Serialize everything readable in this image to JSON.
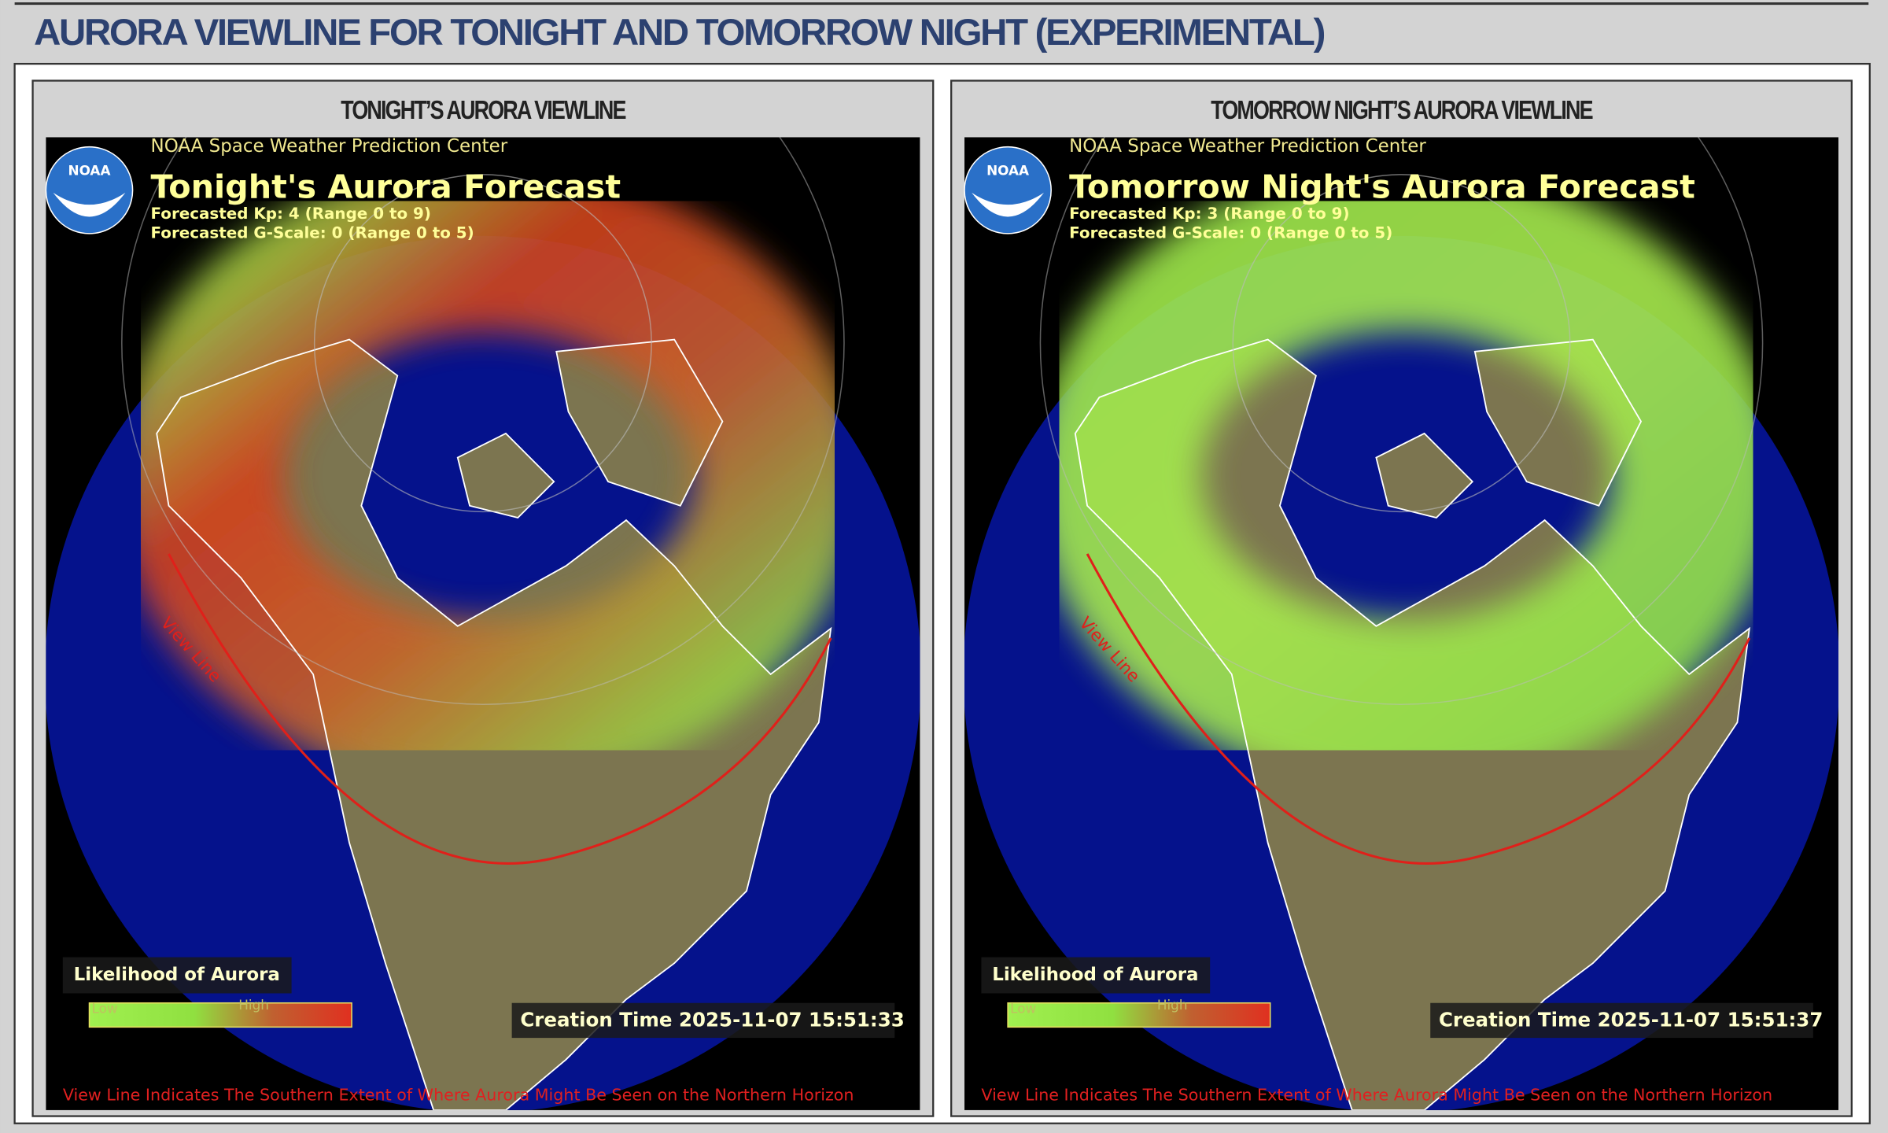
{
  "header": {
    "title": "AURORA VIEWLINE FOR TONIGHT AND TOMORROW NIGHT (EXPERIMENTAL)"
  },
  "panels": [
    {
      "heading": "TONIGHT’S AURORA VIEWLINE",
      "source": "NOAA Space Weather Prediction Center",
      "title": "Tonight's Aurora Forecast",
      "kp": "Forecasted Kp: 4 (Range 0 to 9)",
      "gscale": "Forecasted G-Scale: 0 (Range 0 to 5)",
      "logo": "NOAA",
      "view_line_label": "View Line",
      "legend_title": "Likelihood of Aurora",
      "legend_low": "Low",
      "legend_high": "High",
      "creation_time": "Creation Time 2025-11-07 15:51:33",
      "footer": "View Line Indicates The Southern Extent of Where Aurora Might Be Seen on the Northern Horizon"
    },
    {
      "heading": "TOMORROW NIGHT’S AURORA VIEWLINE",
      "source": "NOAA Space Weather Prediction Center",
      "title": "Tomorrow Night's Aurora Forecast",
      "kp": "Forecasted Kp: 3 (Range 0 to 9)",
      "gscale": "Forecasted G-Scale: 0 (Range 0 to 5)",
      "logo": "NOAA",
      "view_line_label": "View Line",
      "legend_title": "Likelihood of Aurora",
      "legend_low": "Low",
      "legend_high": "High",
      "creation_time": "Creation Time 2025-11-07 15:51:37",
      "footer": "View Line Indicates The Southern Extent of Where Aurora Might Be Seen on the Northern Horizon"
    }
  ]
}
